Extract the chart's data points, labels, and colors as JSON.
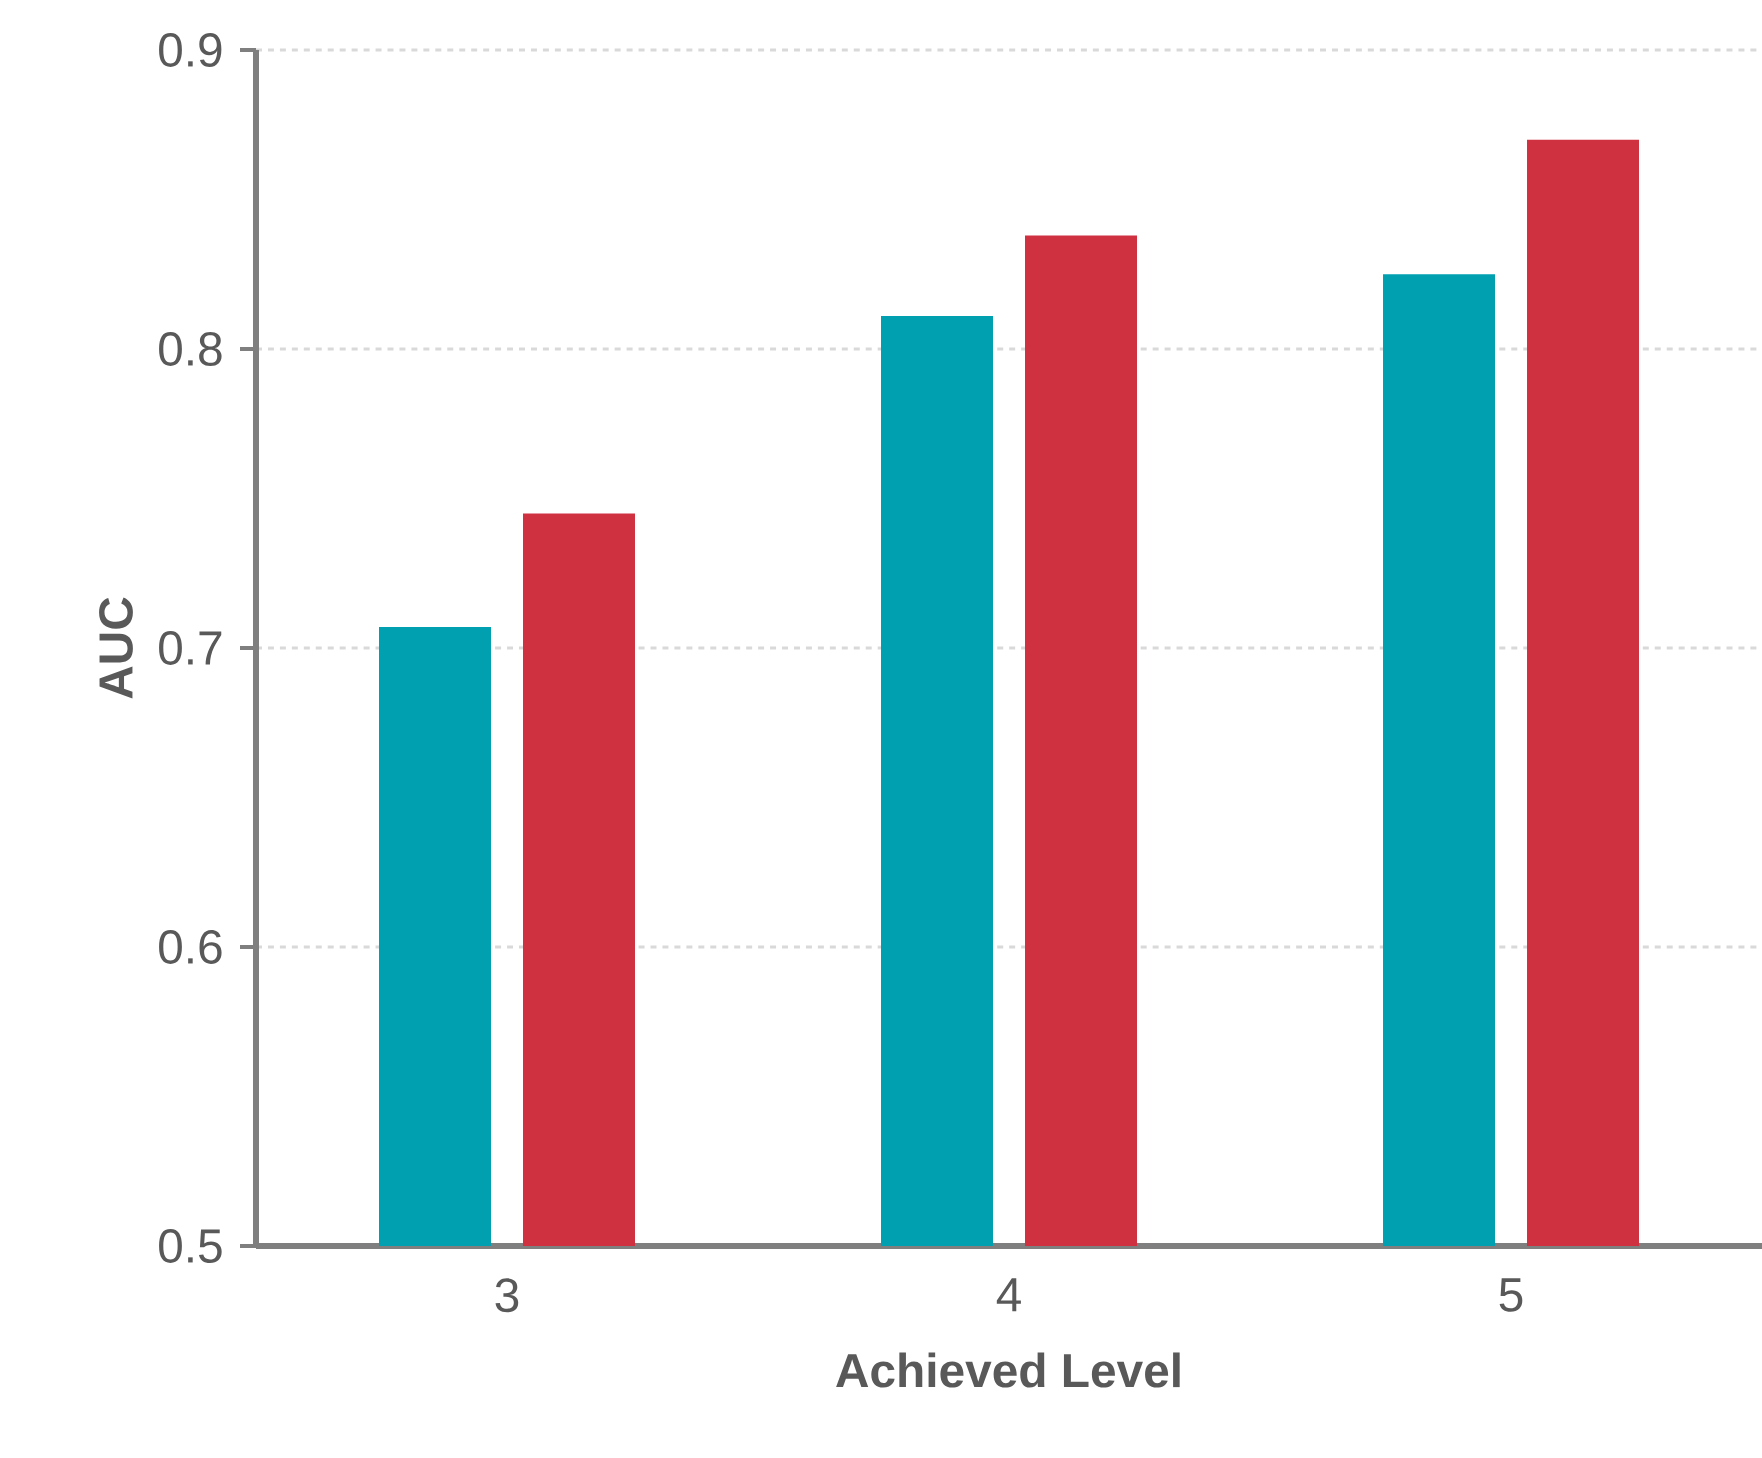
{
  "chart_data": {
    "type": "bar",
    "xlabel": "Achieved Level",
    "ylabel": "AUC",
    "categories": [
      "3",
      "4",
      "5"
    ],
    "series": [
      {
        "color": "#00a0b0",
        "values": [
          0.707,
          0.811,
          0.825
        ]
      },
      {
        "color": "#cf3140",
        "values": [
          0.745,
          0.838,
          0.87
        ]
      }
    ],
    "ylim": [
      0.5,
      0.9
    ],
    "yticks": [
      0.5,
      0.6,
      0.7,
      0.8,
      0.9
    ],
    "grid": "y"
  }
}
